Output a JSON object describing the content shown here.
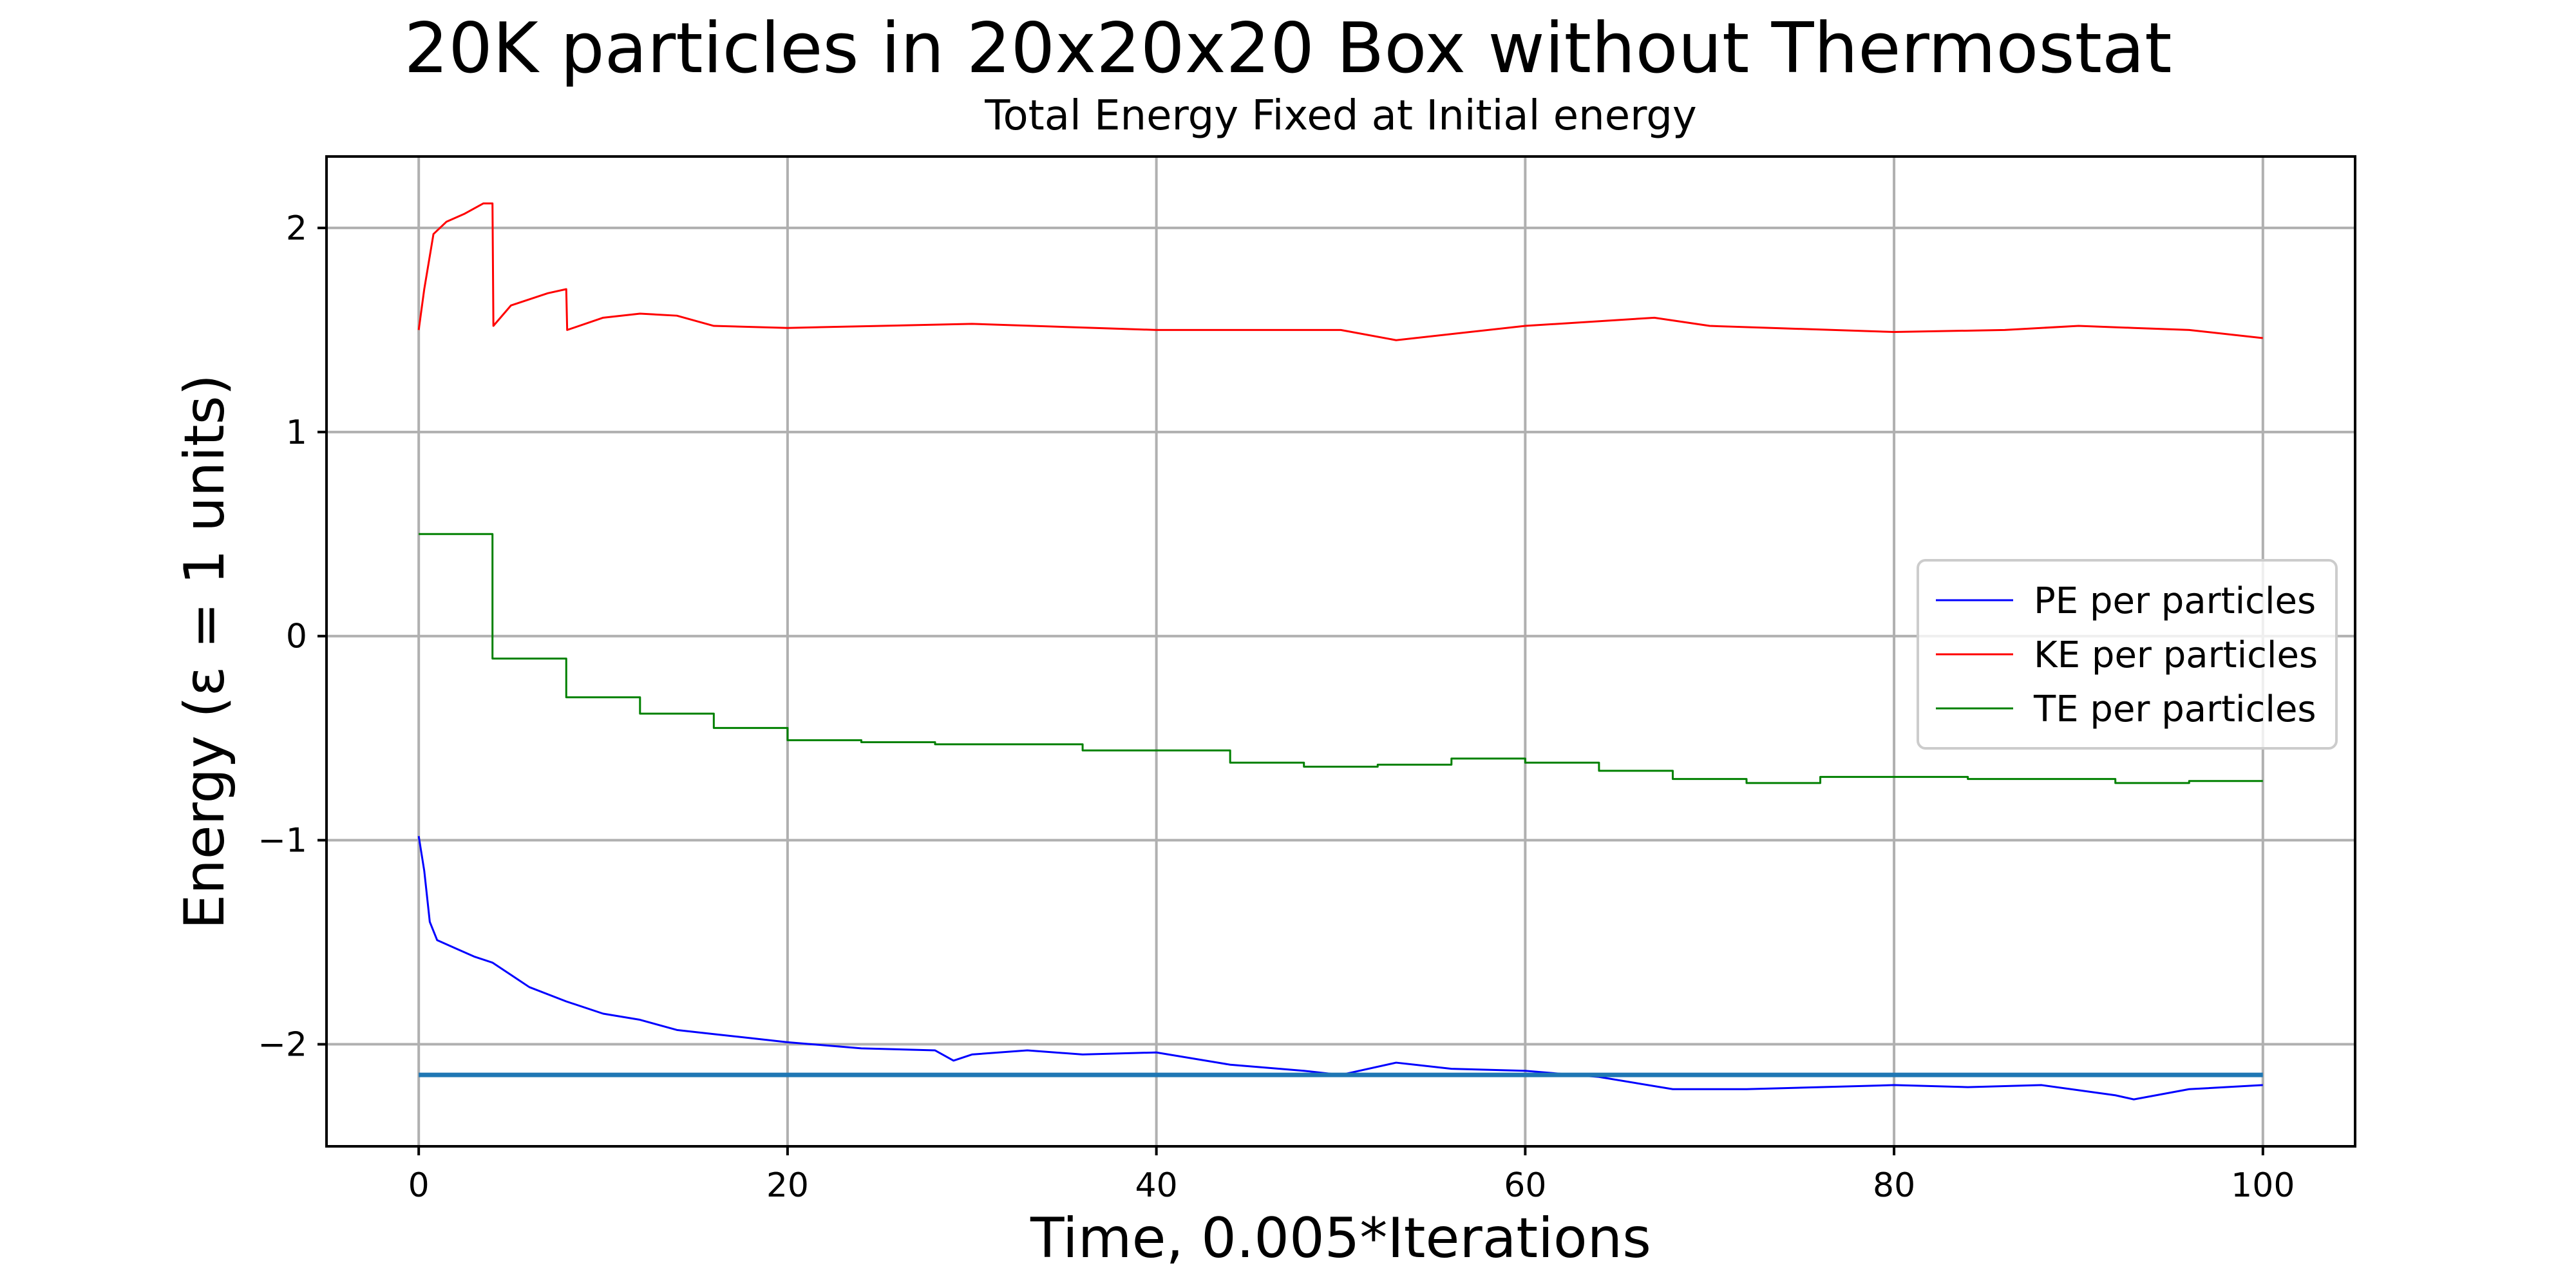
{
  "chart_data": {
    "type": "line",
    "title": "20K particles in 20x20x20 Box without Thermostat",
    "subtitle": "Total Energy Fixed at Initial energy",
    "xlabel": "Time, 0.005*Iterations",
    "ylabel": "Energy (ε = 1 units)",
    "xlim": [
      -5,
      105
    ],
    "ylim": [
      -2.5,
      2.35
    ],
    "xticks": [
      0,
      20,
      40,
      60,
      80,
      100
    ],
    "yticks": [
      -2,
      -1,
      0,
      1,
      2
    ],
    "xtick_labels": [
      "0",
      "20",
      "40",
      "60",
      "80",
      "100"
    ],
    "ytick_labels": [
      "−2",
      "−1",
      "0",
      "1",
      "2"
    ],
    "grid": true,
    "legend_position": "center-right",
    "series": [
      {
        "name": "PE per particles",
        "color": "#0000ff",
        "x": [
          0,
          0.3,
          0.6,
          1,
          2,
          3,
          4,
          5,
          6,
          8,
          10,
          12,
          14,
          16,
          18,
          20,
          24,
          28,
          29,
          30,
          33,
          36,
          40,
          44,
          48,
          50,
          53,
          56,
          60,
          64,
          68,
          72,
          76,
          80,
          84,
          88,
          92,
          93,
          96,
          100
        ],
        "y": [
          -0.98,
          -1.15,
          -1.4,
          -1.49,
          -1.53,
          -1.57,
          -1.6,
          -1.66,
          -1.72,
          -1.79,
          -1.85,
          -1.88,
          -1.93,
          -1.95,
          -1.97,
          -1.99,
          -2.02,
          -2.03,
          -2.08,
          -2.05,
          -2.03,
          -2.05,
          -2.04,
          -2.1,
          -2.13,
          -2.15,
          -2.09,
          -2.12,
          -2.13,
          -2.16,
          -2.22,
          -2.22,
          -2.21,
          -2.2,
          -2.21,
          -2.2,
          -2.25,
          -2.27,
          -2.22,
          -2.2
        ]
      },
      {
        "name": "KE per particles",
        "color": "#ff0000",
        "x": [
          0,
          0.3,
          0.8,
          1.5,
          2.5,
          3.5,
          4,
          4.05,
          5,
          6,
          7,
          8,
          8.05,
          10,
          12,
          14,
          16,
          20,
          30,
          40,
          50,
          53,
          60,
          67,
          70,
          80,
          86,
          90,
          93,
          96,
          100
        ],
        "y": [
          1.5,
          1.7,
          1.97,
          2.03,
          2.07,
          2.12,
          2.12,
          1.52,
          1.62,
          1.65,
          1.68,
          1.7,
          1.5,
          1.56,
          1.58,
          1.57,
          1.52,
          1.51,
          1.53,
          1.5,
          1.5,
          1.45,
          1.52,
          1.56,
          1.52,
          1.49,
          1.5,
          1.52,
          1.51,
          1.5,
          1.46
        ]
      },
      {
        "name": "TE per particles",
        "color": "#008000",
        "step": true,
        "x": [
          0,
          4,
          8,
          12,
          16,
          20,
          24,
          28,
          36,
          44,
          48,
          52,
          56,
          60,
          64,
          68,
          72,
          76,
          84,
          92,
          96,
          100
        ],
        "y": [
          0.5,
          -0.11,
          -0.3,
          -0.38,
          -0.45,
          -0.51,
          -0.52,
          -0.53,
          -0.56,
          -0.62,
          -0.64,
          -0.63,
          -0.6,
          -0.62,
          -0.66,
          -0.7,
          -0.72,
          -0.69,
          -0.7,
          -0.72,
          -0.71,
          -0.71
        ]
      },
      {
        "color": "#1f77b4",
        "x": [
          0,
          100
        ],
        "y": [
          -2.15,
          -2.15
        ]
      }
    ]
  }
}
